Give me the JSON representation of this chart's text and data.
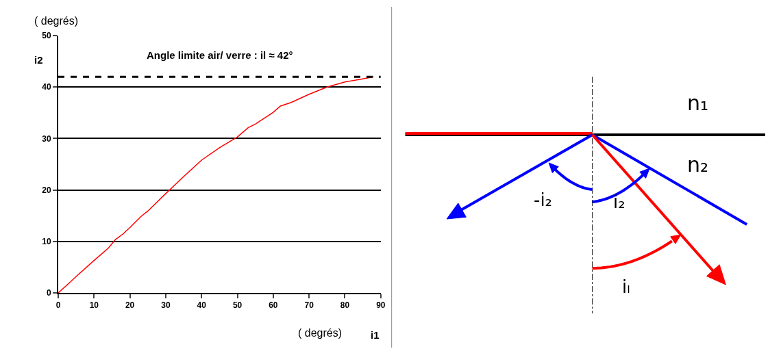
{
  "chart_data": [
    {
      "type": "line",
      "xlabel": "i1",
      "ylabel": "i2",
      "annotations": [
        "( degrés)",
        "( degrés)"
      ],
      "series": [
        {
          "color": "#ff0000",
          "x": [
            0,
            3.5,
            5,
            10,
            14,
            16,
            18,
            20,
            23,
            25,
            30,
            35,
            40,
            45,
            50,
            53,
            55,
            60,
            62,
            65,
            70,
            75,
            80,
            85,
            88
          ],
          "values": [
            0,
            2.2,
            3.2,
            6.3,
            8.7,
            10.4,
            11.4,
            12.7,
            14.8,
            15.9,
            19.3,
            22.6,
            25.8,
            28.2,
            30.3,
            32.1,
            32.8,
            35.1,
            36.3,
            37,
            38.6,
            40,
            41,
            41.6,
            42
          ]
        }
      ],
      "xlim": [
        0,
        90
      ],
      "ylim": [
        0,
        50
      ],
      "xticks": [
        0,
        10,
        20,
        30,
        40,
        50,
        60,
        70,
        80,
        90
      ],
      "yticks": [
        0,
        10,
        20,
        30,
        40,
        50
      ],
      "grid": "y",
      "ref_lines": [
        {
          "axis": "y",
          "value": 42,
          "label": "Angle limite air/ verre : il ≈ 42°",
          "color": "#000000",
          "line_style": "dashed"
        }
      ]
    },
    {
      "type": "other",
      "annotations": [
        "n₁",
        "n₂",
        "-i₂",
        "i₂",
        "iₗ"
      ]
    }
  ]
}
